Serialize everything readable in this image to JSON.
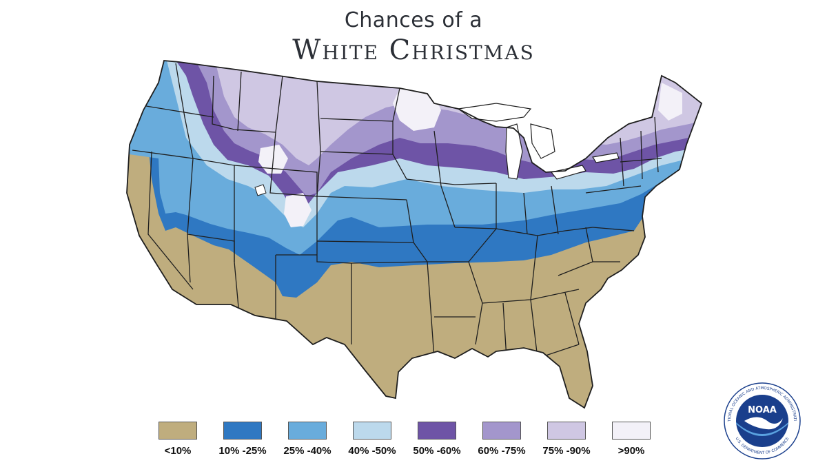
{
  "title": {
    "line1": "Chances of a",
    "line2": "White Christmas"
  },
  "map": {
    "region": "contiguous-united-states",
    "icon": "us-states-map",
    "land_color": "#bfad7e",
    "border_color": "#1e1e1e"
  },
  "legend": {
    "items": [
      {
        "label": "<10%",
        "color": "#bfad7e"
      },
      {
        "label": "10% -25%",
        "color": "#2f78c2"
      },
      {
        "label": "25% -40%",
        "color": "#69acdc"
      },
      {
        "label": "40% -50%",
        "color": "#bcd9ec"
      },
      {
        "label": "50% -60%",
        "color": "#6e54a6"
      },
      {
        "label": "60% -75%",
        "color": "#a396cc"
      },
      {
        "label": "75% -90%",
        "color": "#cfc7e3"
      },
      {
        "label": ">90%",
        "color": "#f3f1f8"
      }
    ]
  },
  "logo": {
    "icon": "noaa-logo",
    "center_text": "NOAA",
    "ring_top": "NATIONAL OCEANIC AND ATMOSPHERIC ADMINISTRATION",
    "ring_bottom": "U.S. DEPARTMENT OF COMMERCE",
    "colors": {
      "blue": "#1a3f8c",
      "light_blue": "#5aa2e0"
    }
  }
}
